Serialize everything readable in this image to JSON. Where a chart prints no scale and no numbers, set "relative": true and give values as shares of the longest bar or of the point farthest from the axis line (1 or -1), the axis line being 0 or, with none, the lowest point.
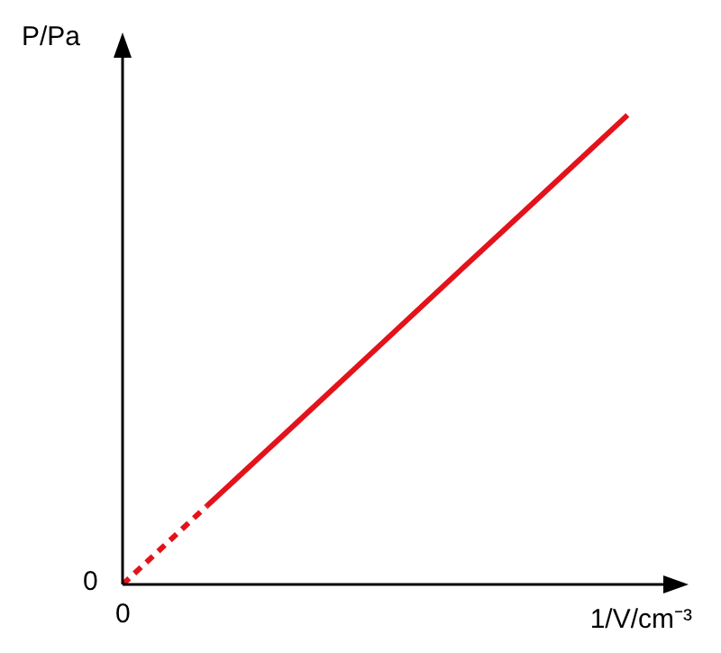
{
  "chart_data": {
    "type": "line",
    "relative": true,
    "xlabel": "1/V/cm⁻³",
    "ylabel": "P/Pa",
    "categories": [
      null,
      null,
      null,
      null,
      null,
      null,
      null
    ],
    "series": [
      {
        "color": "#e3131b",
        "line_style": "dashed",
        "values": [
          0,
          0.167,
          null,
          null,
          null,
          null,
          null
        ]
      },
      {
        "color": "#e3131b",
        "line_style": "solid",
        "values": [
          null,
          0.167,
          0.333,
          0.5,
          0.667,
          0.833,
          1
        ]
      }
    ],
    "annotations": [
      "0",
      "0"
    ],
    "marker": "none",
    "grid": false
  }
}
